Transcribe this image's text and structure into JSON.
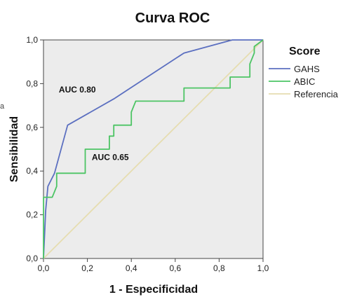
{
  "chart_data": {
    "type": "line",
    "title": "Curva ROC",
    "xlabel": "1 - Especificidad",
    "ylabel": "Sensibilidad",
    "xlim": [
      0,
      1
    ],
    "ylim": [
      0,
      1
    ],
    "xticks": [
      "0,0",
      "0,2",
      "0,4",
      "0,6",
      "0,8",
      "1,0"
    ],
    "yticks": [
      "0,0",
      "0,2",
      "0,4",
      "0,6",
      "0,8",
      "1,0"
    ],
    "grid": false,
    "legend": {
      "title": "Score",
      "placement": "right"
    },
    "series": [
      {
        "name": "GAHS",
        "color": "#5b6fc0",
        "points": [
          [
            0,
            0
          ],
          [
            0.01,
            0.22
          ],
          [
            0.02,
            0.33
          ],
          [
            0.05,
            0.39
          ],
          [
            0.11,
            0.61
          ],
          [
            0.32,
            0.73
          ],
          [
            0.64,
            0.94
          ],
          [
            0.86,
            1.0
          ],
          [
            1.0,
            1.0
          ]
        ]
      },
      {
        "name": "ABIC",
        "color": "#4cc464",
        "points": [
          [
            0,
            0
          ],
          [
            0,
            0.28
          ],
          [
            0.04,
            0.28
          ],
          [
            0.06,
            0.33
          ],
          [
            0.06,
            0.39
          ],
          [
            0.19,
            0.39
          ],
          [
            0.19,
            0.5
          ],
          [
            0.3,
            0.5
          ],
          [
            0.3,
            0.56
          ],
          [
            0.32,
            0.56
          ],
          [
            0.32,
            0.61
          ],
          [
            0.4,
            0.61
          ],
          [
            0.4,
            0.67
          ],
          [
            0.42,
            0.72
          ],
          [
            0.64,
            0.72
          ],
          [
            0.64,
            0.78
          ],
          [
            0.85,
            0.78
          ],
          [
            0.85,
            0.83
          ],
          [
            0.94,
            0.83
          ],
          [
            0.94,
            0.89
          ],
          [
            0.96,
            0.94
          ],
          [
            0.96,
            0.97
          ],
          [
            1.0,
            1.0
          ]
        ]
      },
      {
        "name": "Referencia",
        "color": "#e6ddb0",
        "points": [
          [
            0,
            0
          ],
          [
            1,
            1
          ]
        ]
      }
    ],
    "annotations": [
      {
        "text": "AUC 0.80",
        "x": 0.07,
        "y": 0.76
      },
      {
        "text": "AUC 0.65",
        "x": 0.22,
        "y": 0.45
      }
    ],
    "stray_label": "a",
    "colors": {
      "plot_background": "#ececec",
      "page_background": "#ffffff"
    }
  }
}
